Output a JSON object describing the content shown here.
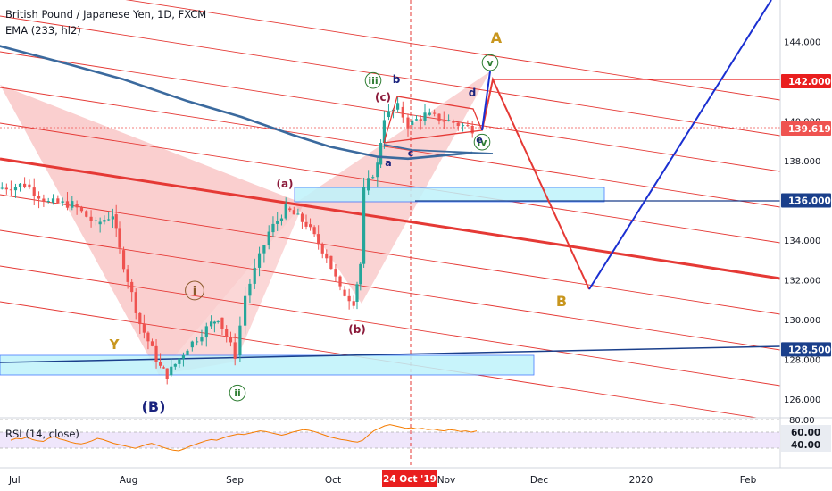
{
  "header": {
    "title": "British Pound / Japanese Yen, 1D, FXCM",
    "ema_label": "EMA (233, hl2)"
  },
  "rsi": {
    "label": "RSI (14, close)",
    "axis_ticks": [
      "80.00",
      "60.00",
      "40.00"
    ],
    "values": [
      47,
      50,
      49,
      52,
      48,
      46,
      45,
      50,
      53,
      49,
      47,
      44,
      42,
      41,
      43,
      46,
      50,
      48,
      45,
      42,
      40,
      38,
      36,
      34,
      37,
      40,
      42,
      39,
      36,
      33,
      31,
      30,
      33,
      37,
      40,
      43,
      46,
      48,
      47,
      50,
      53,
      55,
      57,
      56,
      58,
      60,
      62,
      61,
      59,
      57,
      55,
      57,
      60,
      62,
      64,
      63,
      61,
      58,
      55,
      52,
      50,
      48,
      47,
      45,
      44,
      47,
      55,
      62,
      66,
      70,
      72,
      70,
      68,
      66,
      67,
      65,
      66,
      64,
      65,
      63,
      62,
      64,
      63,
      61,
      62,
      60,
      62
    ]
  },
  "time_axis": {
    "labels": [
      "Jul",
      "Aug",
      "Sep",
      "Oct",
      "Nov",
      "Dec",
      "2020",
      "Feb"
    ],
    "highlight": "24 Oct '19"
  },
  "price_axis": {
    "ticks": [
      "144.000",
      "142.000",
      "140.000",
      "138.000",
      "136.000",
      "134.000",
      "132.000",
      "130.000",
      "128.000",
      "126.000"
    ],
    "markers": [
      {
        "label": "142.000",
        "color": "#e91e1e",
        "text_color": "#ffffff"
      },
      {
        "label": "139.619",
        "color": "#ef5350",
        "text_color": "#ffffff"
      },
      {
        "label": "136.000",
        "color": "#1a3f8b",
        "text_color": "#ffffff"
      },
      {
        "label": "128.500",
        "color": "#1a3f8b",
        "text_color": "#ffffff"
      }
    ]
  },
  "wave_labels": [
    {
      "text": "A",
      "color": "#c8961e"
    },
    {
      "text": "B",
      "color": "#c8961e"
    },
    {
      "text": "Y",
      "color": "#c8961e"
    },
    {
      "text": "(B)",
      "color": "#1a237e"
    },
    {
      "text": "(a)",
      "color": "#8b1a3a"
    },
    {
      "text": "(b)",
      "color": "#8b1a3a"
    },
    {
      "text": "(c)",
      "color": "#8b1a3a"
    },
    {
      "text": "i",
      "color": "#8b5a2b"
    },
    {
      "text": "ii",
      "color": "#2e7d32"
    },
    {
      "text": "iii",
      "color": "#2e7d32"
    },
    {
      "text": "v",
      "color": "#2e7d32"
    },
    {
      "text": "iv",
      "color": "#2e7d32"
    },
    {
      "text": "a",
      "color": "#1a237e"
    },
    {
      "text": "b",
      "color": "#1a237e"
    },
    {
      "text": "c",
      "color": "#1a237e"
    },
    {
      "text": "d",
      "color": "#1a237e"
    },
    {
      "text": "e",
      "color": "#1a237e"
    }
  ],
  "chart_data": {
    "type": "candlestick",
    "symbol": "British Pound / Japanese Yen",
    "timeframe": "1D",
    "ylim": [
      125,
      146
    ],
    "last_price": 139.619,
    "ohlc_close_path": [
      {
        "date": "2019-06-25",
        "close": 136.6
      },
      {
        "date": "2019-07-03",
        "close": 136.8
      },
      {
        "date": "2019-07-10",
        "close": 135.9
      },
      {
        "date": "2019-07-17",
        "close": 135.8
      },
      {
        "date": "2019-07-24",
        "close": 134.8
      },
      {
        "date": "2019-07-29",
        "close": 135.3
      },
      {
        "date": "2019-07-31",
        "close": 133.5
      },
      {
        "date": "2019-08-06",
        "close": 129.8
      },
      {
        "date": "2019-08-12",
        "close": 127.6
      },
      {
        "date": "2019-08-14",
        "close": 127.2
      },
      {
        "date": "2019-08-20",
        "close": 128.6
      },
      {
        "date": "2019-08-27",
        "close": 129.8
      },
      {
        "date": "2019-08-29",
        "close": 130.1
      },
      {
        "date": "2019-09-03",
        "close": 128.2
      },
      {
        "date": "2019-09-06",
        "close": 131.2
      },
      {
        "date": "2019-09-13",
        "close": 134.4
      },
      {
        "date": "2019-09-18",
        "close": 135.6
      },
      {
        "date": "2019-09-24",
        "close": 134.8
      },
      {
        "date": "2019-09-30",
        "close": 133.2
      },
      {
        "date": "2019-10-04",
        "close": 131.5
      },
      {
        "date": "2019-10-08",
        "close": 130.9
      },
      {
        "date": "2019-10-10",
        "close": 132.8
      },
      {
        "date": "2019-10-11",
        "close": 136.5
      },
      {
        "date": "2019-10-15",
        "close": 137.8
      },
      {
        "date": "2019-10-17",
        "close": 140.2
      },
      {
        "date": "2019-10-21",
        "close": 140.7
      },
      {
        "date": "2019-10-24",
        "close": 139.8
      },
      {
        "date": "2019-10-29",
        "close": 140.3
      },
      {
        "date": "2019-11-05",
        "close": 140.0
      },
      {
        "date": "2019-11-12",
        "close": 139.6
      }
    ],
    "ema_233": [
      {
        "date": "2019-06-25",
        "value": 143.8
      },
      {
        "date": "2019-07-15",
        "value": 142.9
      },
      {
        "date": "2019-08-01",
        "value": 142.1
      },
      {
        "date": "2019-08-20",
        "value": 141.0
      },
      {
        "date": "2019-09-05",
        "value": 140.2
      },
      {
        "date": "2019-09-20",
        "value": 139.3
      },
      {
        "date": "2019-10-01",
        "value": 138.7
      },
      {
        "date": "2019-10-15",
        "value": 138.2
      },
      {
        "date": "2019-10-24",
        "value": 138.1
      },
      {
        "date": "2019-11-12",
        "value": 138.4
      }
    ],
    "levels": [
      {
        "price": 142.0,
        "color": "#e91e1e"
      },
      {
        "price": 136.0,
        "color": "#1a3f8b"
      },
      {
        "price": 128.5,
        "color": "#1a3f8b"
      }
    ],
    "projection_red": [
      {
        "date": "2019-11-15",
        "price": 142.0
      },
      {
        "date": "2019-12-18",
        "price": 131.5
      }
    ],
    "projection_blue": [
      {
        "date": "2019-12-18",
        "price": 131.5
      },
      {
        "date": "2020-02-05",
        "price": 146.0
      }
    ],
    "vertical_marker_date": "2019-10-24",
    "rsi_levels": [
      80,
      60,
      40
    ]
  },
  "colors": {
    "up": "#26a69a",
    "down": "#ef5350",
    "ema": "#3b6a9e",
    "channel": "#e53935",
    "zone_fill": "#bff3fb"
  }
}
